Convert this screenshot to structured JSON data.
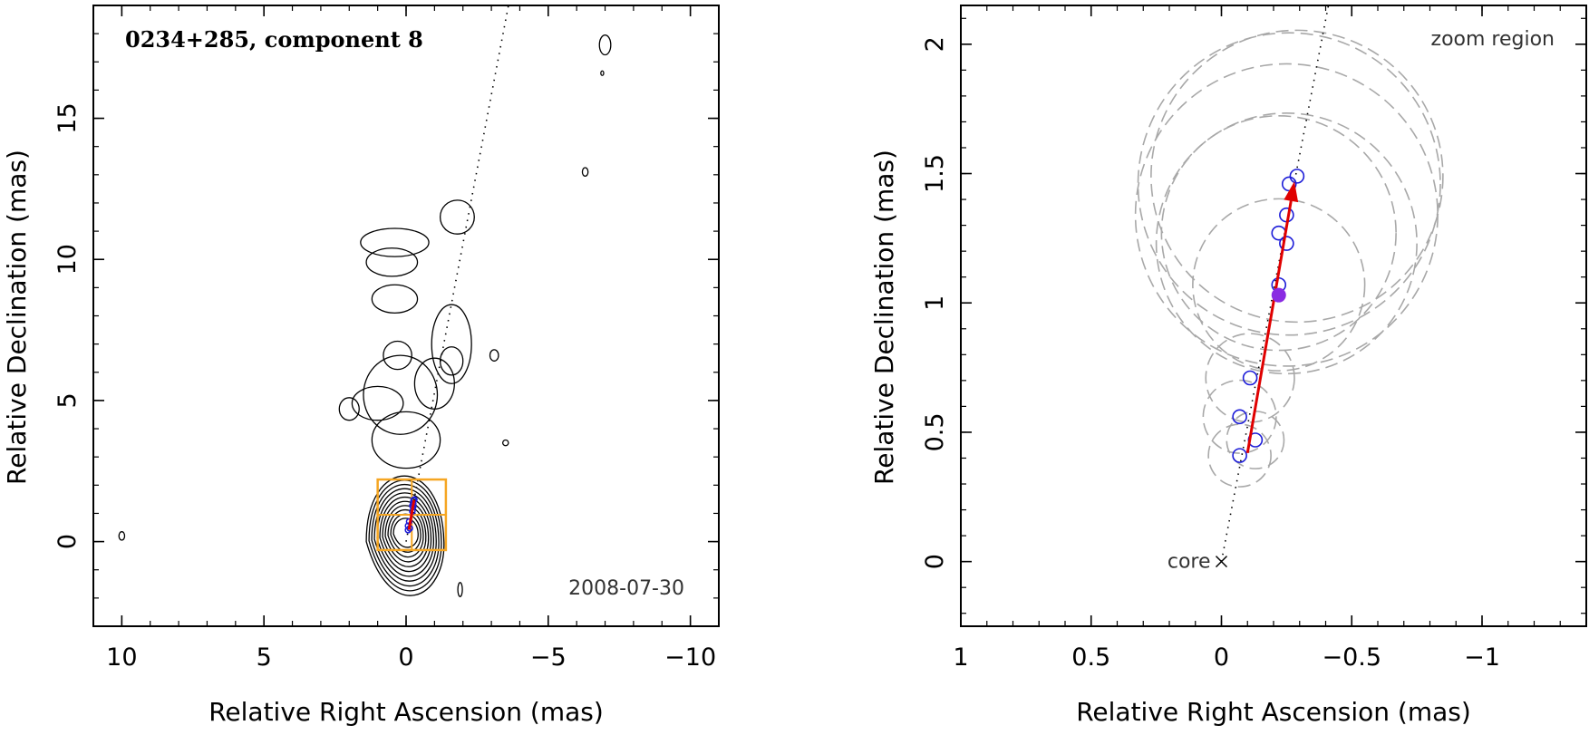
{
  "chart_data": [
    {
      "type": "scatter",
      "panel": "left",
      "title": "0234+285, component 8",
      "date": "2008-07-30",
      "xlabel": "Relative Right Ascension (mas)",
      "ylabel": "Relative Declination (mas)",
      "xlim": [
        11,
        -11
      ],
      "ylim": [
        -3,
        19
      ],
      "xticks": [
        10,
        5,
        0,
        -5,
        -10
      ],
      "yticks": [
        0,
        5,
        10,
        15
      ],
      "xtick_labels": [
        "10",
        "5",
        "0",
        "−5",
        "−10"
      ],
      "ytick_labels": [
        "0",
        "5",
        "10",
        "15"
      ],
      "grid": false,
      "jet_axis_line": {
        "x": [
          0,
          -3.6
        ],
        "y": [
          0,
          19
        ]
      },
      "component_positions": [
        {
          "x": -0.07,
          "y": 0.41
        },
        {
          "x": -0.13,
          "y": 0.47
        },
        {
          "x": -0.07,
          "y": 0.56
        },
        {
          "x": -0.11,
          "y": 0.71
        },
        {
          "x": -0.22,
          "y": 1.07
        },
        {
          "x": -0.22,
          "y": 1.27
        },
        {
          "x": -0.25,
          "y": 1.23
        },
        {
          "x": -0.25,
          "y": 1.34
        },
        {
          "x": -0.26,
          "y": 1.46
        },
        {
          "x": -0.29,
          "y": 1.49
        }
      ],
      "velocity_vector": {
        "from": {
          "x": -0.1,
          "y": 0.42
        },
        "to": {
          "x": -0.28,
          "y": 1.47
        }
      },
      "zoom_box": {
        "x": [
          1.0,
          -1.4
        ],
        "y": [
          -0.3,
          2.2
        ]
      }
    },
    {
      "type": "scatter",
      "panel": "right",
      "annotation": "zoom region",
      "core_label": "core",
      "xlabel": "Relative Right Ascension (mas)",
      "ylabel": "Relative Declination (mas)",
      "xlim": [
        1.0,
        -1.4
      ],
      "ylim": [
        -0.25,
        2.15
      ],
      "xticks": [
        1,
        0.5,
        0,
        -0.5,
        -1
      ],
      "yticks": [
        0,
        0.5,
        1,
        1.5,
        2
      ],
      "xtick_labels": [
        "1",
        "0.5",
        "0",
        "−0.5",
        "−1"
      ],
      "ytick_labels": [
        "0",
        "0.5",
        "1",
        "1.5",
        "2"
      ],
      "grid": false,
      "core": {
        "x": 0,
        "y": 0
      },
      "jet_axis_line": {
        "x": [
          0,
          -0.42
        ],
        "y": [
          0,
          2.2
        ]
      },
      "component_positions": [
        {
          "x": -0.07,
          "y": 0.41
        },
        {
          "x": -0.13,
          "y": 0.47
        },
        {
          "x": -0.07,
          "y": 0.56
        },
        {
          "x": -0.11,
          "y": 0.71
        },
        {
          "x": -0.22,
          "y": 1.07
        },
        {
          "x": -0.22,
          "y": 1.27
        },
        {
          "x": -0.25,
          "y": 1.23
        },
        {
          "x": -0.25,
          "y": 1.34
        },
        {
          "x": -0.26,
          "y": 1.46
        },
        {
          "x": -0.29,
          "y": 1.49
        }
      ],
      "highlighted_position": {
        "x": -0.22,
        "y": 1.03
      },
      "velocity_vector": {
        "from": {
          "x": -0.1,
          "y": 0.42
        },
        "to": {
          "x": -0.28,
          "y": 1.47
        }
      },
      "fitted_component_sizes": [
        {
          "x": -0.07,
          "y": 0.41,
          "r": 0.12
        },
        {
          "x": -0.13,
          "y": 0.47,
          "r": 0.11
        },
        {
          "x": -0.07,
          "y": 0.56,
          "r": 0.14
        },
        {
          "x": -0.11,
          "y": 0.71,
          "r": 0.17
        },
        {
          "x": -0.22,
          "y": 1.07,
          "r": 0.33
        },
        {
          "x": -0.22,
          "y": 1.27,
          "r": 0.45
        },
        {
          "x": -0.25,
          "y": 1.23,
          "r": 0.5
        },
        {
          "x": -0.25,
          "y": 1.34,
          "r": 0.58
        },
        {
          "x": -0.26,
          "y": 1.46,
          "r": 0.58
        },
        {
          "x": -0.29,
          "y": 1.49,
          "r": 0.56
        }
      ]
    }
  ],
  "colors": {
    "component_marker": "#1c1cd8",
    "highlight_marker": "#8a2be2",
    "vector": "#e00000",
    "zoom_box": "#f5a623",
    "dashed_circles": "#a8a8a8",
    "contours": "#000000"
  }
}
